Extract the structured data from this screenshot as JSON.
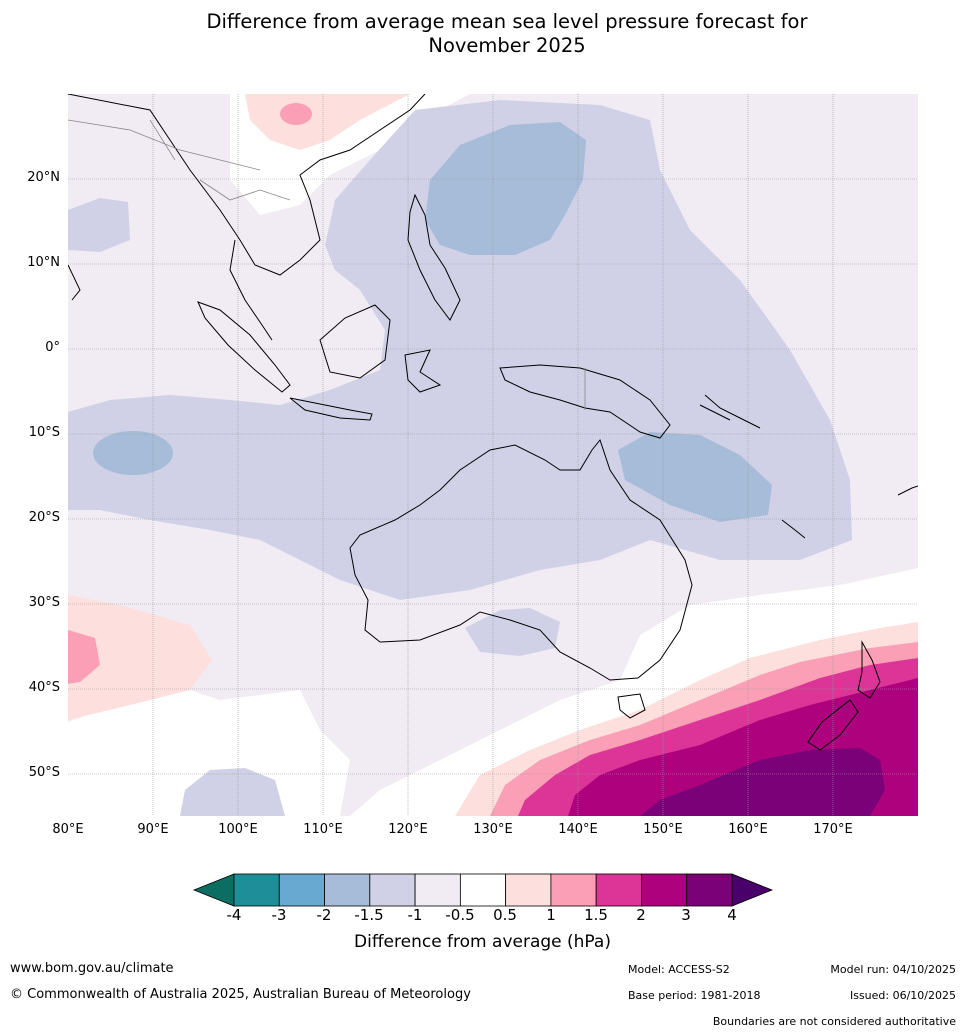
{
  "title_line1": "Difference from average mean sea level pressure forecast for",
  "title_line2": "November 2025",
  "map": {
    "lat_labels": [
      "20°N",
      "10°N",
      "0°",
      "10°S",
      "20°S",
      "30°S",
      "40°S",
      "50°S"
    ],
    "lon_labels": [
      "80°E",
      "90°E",
      "100°E",
      "110°E",
      "120°E",
      "130°E",
      "140°E",
      "150°E",
      "160°E",
      "170°E"
    ],
    "lat_range": [
      -55,
      30
    ],
    "lon_range": [
      80,
      180
    ]
  },
  "colorbar": {
    "title": "Difference from average (hPa)",
    "tick_labels": [
      "-4",
      "-3",
      "-2",
      "-1.5",
      "-1",
      "-0.5",
      "0.5",
      "1",
      "1.5",
      "2",
      "3",
      "4"
    ],
    "colors": [
      "#0c6e63",
      "#1e8f98",
      "#67a9d0",
      "#a6bcd9",
      "#d0d1e6",
      "#f1ebf4",
      "#ffffff",
      "#fde0dd",
      "#fa9fb5",
      "#dd3497",
      "#ae017e",
      "#7a0177",
      "#49006a"
    ]
  },
  "footer": {
    "url": "www.bom.gov.au/climate",
    "copyright": "© Commonwealth of Australia 2025, Australian Bureau of Meteorology",
    "model": "Model: ACCESS-S2",
    "base_period": "Base period: 1981-2018",
    "model_run": "Model run: 04/10/2025",
    "issued": "Issued: 06/10/2025",
    "disclaimer": "Boundaries are not considered authoritative"
  }
}
